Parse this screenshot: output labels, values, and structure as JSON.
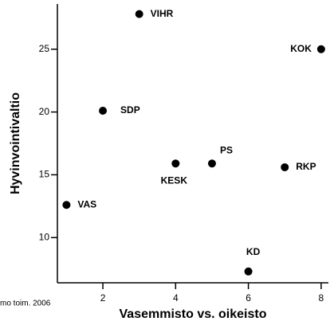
{
  "chart_data": {
    "type": "scatter",
    "x_label": "Vasemmisto vs. oikeisto",
    "y_label": "Hyvinvointivaltio",
    "note": "mo toim. 2006",
    "labels": [
      "VIHR",
      "SDP",
      "KOK",
      "KESK",
      "PS",
      "RKP",
      "VAS",
      "KD"
    ],
    "x": [
      3,
      2,
      8,
      4,
      5,
      7,
      1,
      6
    ],
    "values": [
      27.8,
      20.1,
      25,
      15.9,
      15.9,
      15.6,
      12.6,
      7.3
    ],
    "color": "#000000",
    "xlim": [
      0.75,
      8.2
    ],
    "xticks": [
      2,
      4,
      6,
      8
    ],
    "ylim": [
      6.4,
      28.6
    ],
    "yticks": [
      10,
      15,
      20,
      25
    ],
    "grid": false
  }
}
